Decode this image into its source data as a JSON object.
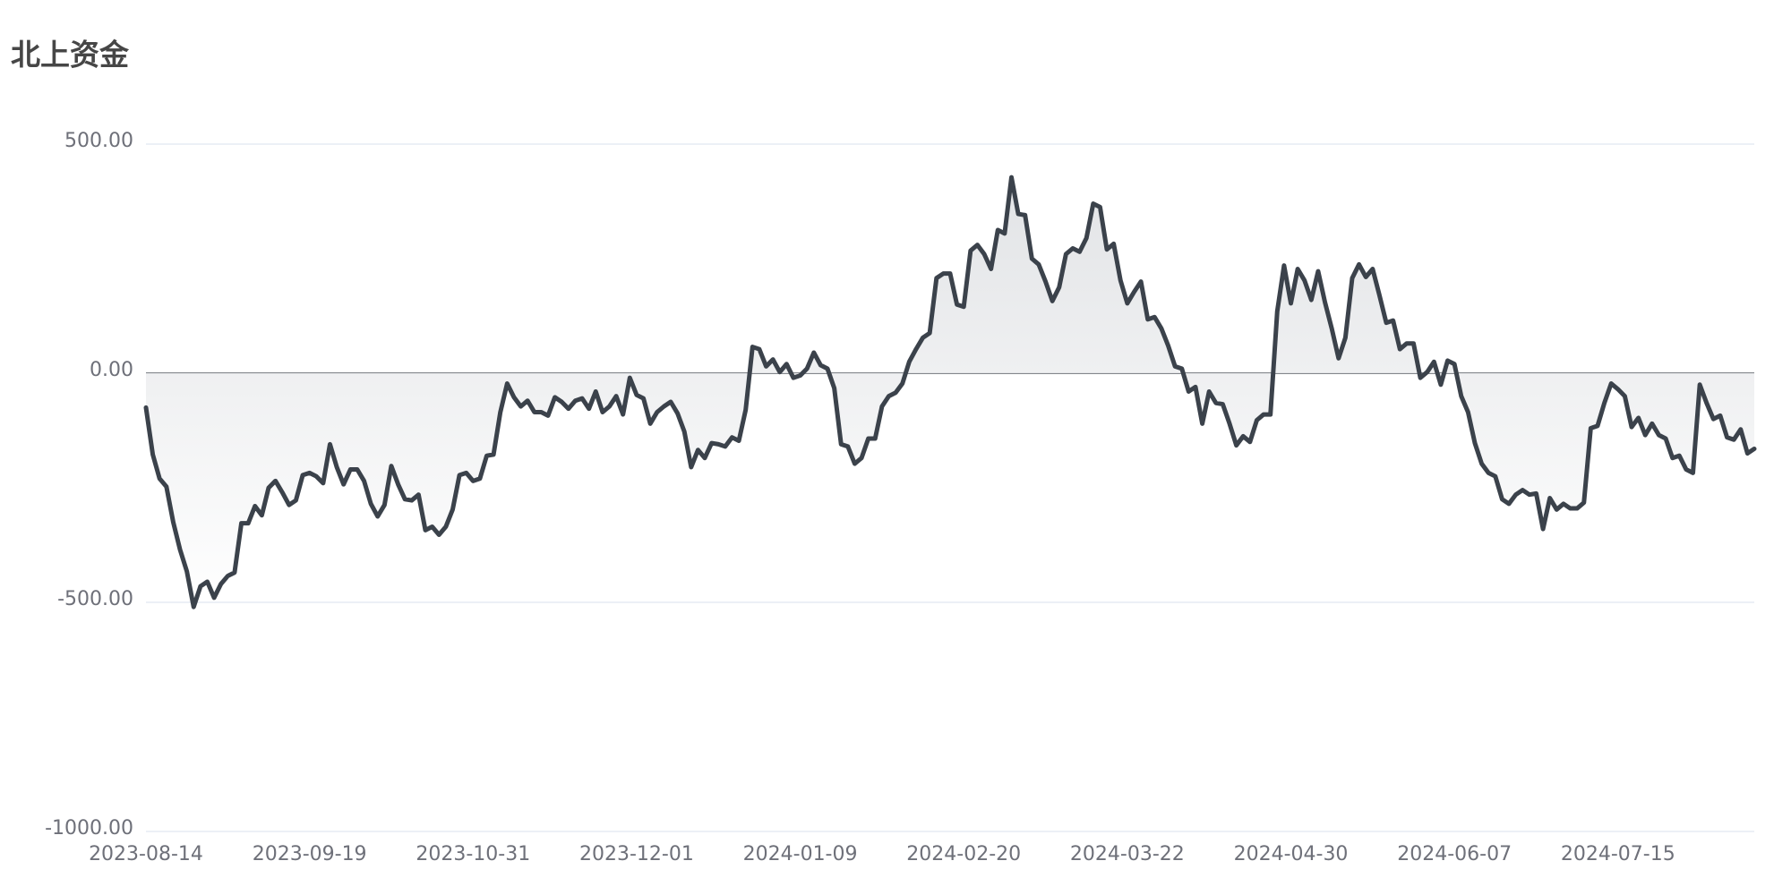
{
  "chart_data": {
    "type": "line",
    "title": "北上资金",
    "categories": [
      "2023-08-14",
      null,
      null,
      null,
      null,
      null,
      null,
      null,
      null,
      null,
      null,
      null,
      null,
      null,
      null,
      null,
      null,
      null,
      null,
      null,
      null,
      null,
      null,
      null,
      "2023-09-19",
      null,
      null,
      null,
      null,
      null,
      null,
      null,
      null,
      null,
      null,
      null,
      null,
      null,
      null,
      null,
      null,
      null,
      null,
      null,
      null,
      null,
      null,
      null,
      "2023-10-31",
      null,
      null,
      null,
      null,
      null,
      null,
      null,
      null,
      null,
      null,
      null,
      null,
      null,
      null,
      null,
      null,
      null,
      null,
      null,
      null,
      null,
      null,
      null,
      "2023-12-01",
      null,
      null,
      null,
      null,
      null,
      null,
      null,
      null,
      null,
      null,
      null,
      null,
      null,
      null,
      null,
      null,
      null,
      null,
      null,
      null,
      null,
      null,
      null,
      "2024-01-09",
      null,
      null,
      null,
      null,
      null,
      null,
      null,
      null,
      null,
      null,
      null,
      null,
      null,
      null,
      null,
      null,
      null,
      null,
      null,
      null,
      null,
      null,
      null,
      "2024-02-20",
      null,
      null,
      null,
      null,
      null,
      null,
      null,
      null,
      null,
      null,
      null,
      null,
      null,
      null,
      null,
      null,
      null,
      null,
      null,
      null,
      null,
      null,
      null,
      "2024-03-22",
      null,
      null,
      null,
      null,
      null,
      null,
      null,
      null,
      null,
      null,
      null,
      null,
      null,
      null,
      null,
      null,
      null,
      null,
      null,
      null,
      null,
      null,
      null,
      "2024-04-30",
      null,
      null,
      null,
      null,
      null,
      null,
      null,
      null,
      null,
      null,
      null,
      null,
      null,
      null,
      null,
      null,
      null,
      null,
      null,
      null,
      null,
      null,
      null,
      "2024-06-07",
      null,
      null,
      null,
      null,
      null,
      null,
      null,
      null,
      null,
      null,
      null,
      null,
      null,
      null,
      null,
      null,
      null,
      null,
      null,
      null,
      null,
      null,
      null,
      "2024-07-15",
      null,
      null,
      null,
      null,
      null,
      null,
      null,
      null,
      null,
      null,
      null,
      null,
      null,
      null,
      null,
      null,
      null,
      null,
      null,
      null
    ],
    "values": [
      -75,
      -177.5,
      -230,
      -247.5,
      -325,
      -385,
      -432.5,
      -510,
      -465,
      -455,
      -490,
      -460,
      -442.5,
      -435,
      -327.5,
      -327.5,
      -290,
      -310,
      -250,
      -235,
      -260,
      -287.5,
      -277.5,
      -222.5,
      -217.5,
      -225,
      -240,
      -155,
      -205,
      -242.5,
      -210,
      -210,
      -235,
      -285,
      -312.5,
      -287.5,
      -202.5,
      -242.5,
      -275,
      -277.5,
      -265,
      -342.5,
      -335,
      -352.5,
      -335,
      -297.5,
      -222.5,
      -217.5,
      -235,
      -230,
      -180,
      -177.5,
      -85,
      -22.5,
      -52.5,
      -72.5,
      -60,
      -85,
      -85,
      -92.5,
      -52.5,
      -62.5,
      -77.5,
      -60,
      -55,
      -77.5,
      -40,
      -85,
      -72.5,
      -50,
      -90,
      -10,
      -47.5,
      -55,
      -110,
      -85,
      -72.5,
      -62.5,
      -87.5,
      -127.5,
      -205,
      -167.5,
      -185,
      -152.5,
      -155,
      -160,
      -140,
      -147.5,
      -80,
      57.5,
      52.5,
      15,
      30,
      2.5,
      20,
      -10,
      -5,
      10,
      45,
      17.5,
      10,
      -32.5,
      -155,
      -160,
      -197.5,
      -185,
      -142.5,
      -142.5,
      -72.5,
      -50,
      -42.5,
      -22.5,
      25,
      52.5,
      77.5,
      87.5,
      207.5,
      217.5,
      217.5,
      150,
      145,
      267.5,
      280,
      260,
      227.5,
      312.5,
      305,
      427.5,
      347.5,
      345,
      250,
      237.5,
      200,
      157.5,
      187.5,
      260,
      272.5,
      265,
      295,
      370,
      362.5,
      270,
      282.5,
      202.5,
      152.5,
      177.5,
      200,
      117.5,
      122.5,
      97.5,
      60,
      15,
      10,
      -40,
      -30,
      -110,
      -40,
      -65,
      -67.5,
      -110,
      -157.5,
      -137.5,
      -150,
      -102.5,
      -90,
      -90,
      135,
      235,
      152.5,
      227.5,
      202.5,
      160,
      222.5,
      155,
      97.5,
      32.5,
      77.5,
      207.5,
      237.5,
      210,
      227.5,
      170,
      110,
      115,
      52.5,
      65,
      65,
      -10,
      2.5,
      25,
      -25,
      27.5,
      20,
      -50,
      -85,
      -152.5,
      -197.5,
      -217.5,
      -225,
      -275,
      -285,
      -265,
      -255,
      -265,
      -262.5,
      -340,
      -272.5,
      -297.5,
      -285,
      -295,
      -295,
      -282.5,
      -120,
      -115,
      -65,
      -22.5,
      -35,
      -50,
      -117.5,
      -97.5,
      -135,
      -110,
      -135,
      -142.5,
      -185,
      -180,
      -210,
      -217.5,
      -25,
      -65,
      -100,
      -92.5,
      -140,
      -145,
      -122.5,
      -175,
      -165
    ],
    "color": "#3b424b",
    "ylim": [
      -1000,
      500
    ],
    "yticks": [
      {
        "value": -1000,
        "label": "-1000.00"
      },
      {
        "value": -500,
        "label": "-500.00"
      },
      {
        "value": 0,
        "label": "0.00"
      },
      {
        "value": 500,
        "label": "500.00"
      }
    ],
    "grid": true
  }
}
